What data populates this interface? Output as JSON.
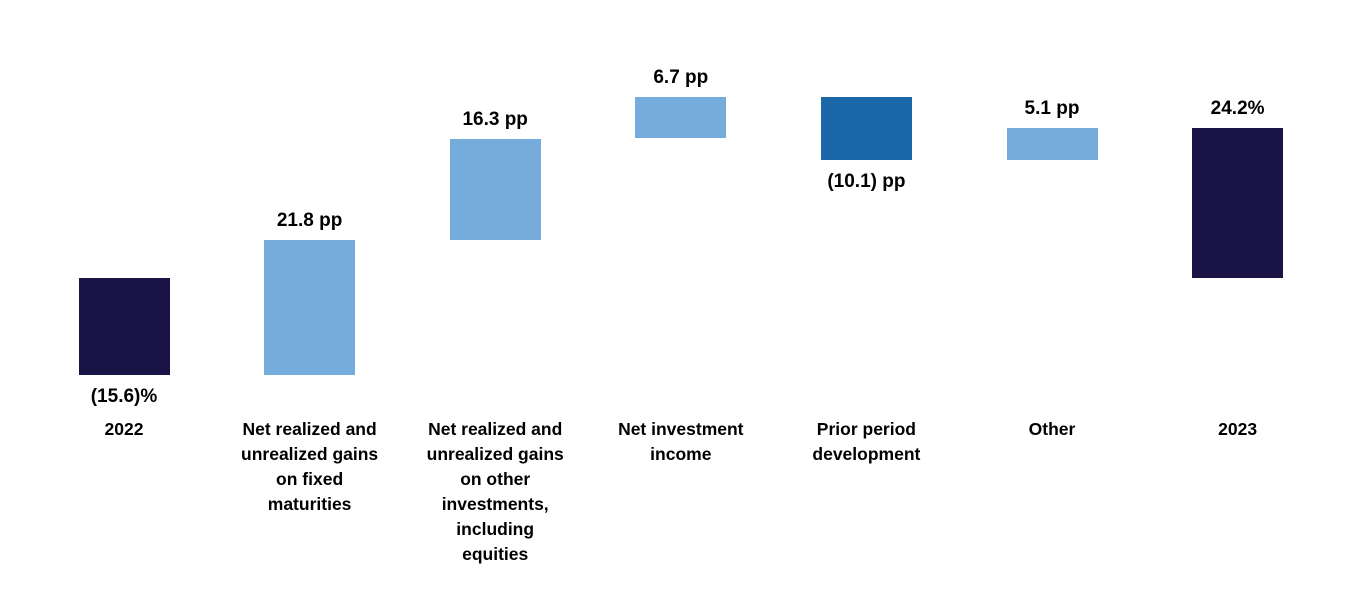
{
  "colors": {
    "total": "#1a1446",
    "increase": "#76acdb",
    "decrease": "#1b67a8",
    "label_text": "#000000",
    "background": "#ffffff"
  },
  "chart_data": {
    "type": "bar",
    "subtype": "waterfall",
    "title": "",
    "unit": "percentage points",
    "ylim": [
      -15.6,
      29.2
    ],
    "grid": false,
    "legend": false,
    "axis_visible": false,
    "categories": [
      "2022",
      "Net realized and unrealized gains on fixed maturities",
      "Net realized and unrealized gains on other investments, including equities",
      "Net investment income",
      "Prior period development",
      "Other",
      "2023"
    ],
    "bars": [
      {
        "id": "2022",
        "category_display": "2022",
        "data_label": "(15.6)%",
        "value": -15.6,
        "cumulative_start": 0,
        "cumulative_end": -15.6,
        "color_role": "total",
        "label_position": "below"
      },
      {
        "id": "fixed-maturities-gains",
        "category_display": "Net realized and\nunrealized gains\non fixed\nmaturities",
        "data_label": "21.8 pp",
        "value": 21.8,
        "cumulative_start": -15.6,
        "cumulative_end": 6.2,
        "color_role": "increase",
        "label_position": "above"
      },
      {
        "id": "other-investments-gains",
        "category_display": "Net realized and\nunrealized gains\non other\ninvestments,\nincluding\nequities",
        "data_label": "16.3 pp",
        "value": 16.3,
        "cumulative_start": 6.2,
        "cumulative_end": 22.5,
        "color_role": "increase",
        "label_position": "above"
      },
      {
        "id": "net-investment-income",
        "category_display": "Net investment\nincome",
        "data_label": "6.7 pp",
        "value": 6.7,
        "cumulative_start": 22.5,
        "cumulative_end": 29.2,
        "color_role": "increase",
        "label_position": "above"
      },
      {
        "id": "prior-period-development",
        "category_display": "Prior period\ndevelopment",
        "data_label": "(10.1) pp",
        "value": -10.1,
        "cumulative_start": 29.2,
        "cumulative_end": 19.1,
        "color_role": "decrease",
        "label_position": "below"
      },
      {
        "id": "other",
        "category_display": "Other",
        "data_label": "5.1 pp",
        "value": 5.1,
        "cumulative_start": 19.1,
        "cumulative_end": 24.2,
        "color_role": "increase",
        "label_position": "above"
      },
      {
        "id": "2023",
        "category_display": "2023",
        "data_label": "24.2%",
        "value": 24.2,
        "cumulative_start": 0,
        "cumulative_end": 24.2,
        "color_role": "total",
        "label_position": "above"
      }
    ]
  }
}
